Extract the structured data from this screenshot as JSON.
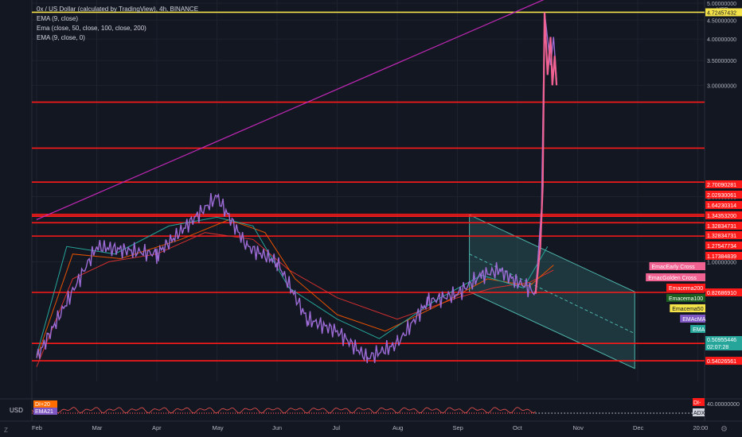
{
  "legend": {
    "title": "0x / US Dollar (calculated by TradingView), 4h, BINANCE",
    "ema1": "EMA (9, close)",
    "ema2": "Ema (close, 50, close, 100, close, 200)",
    "ema3": "EMA (9, close, 0)"
  },
  "axis_currency": "USD",
  "scale_mode_label": "Z",
  "colors": {
    "background": "#131722",
    "price_line": "#9c6bd6",
    "spike": "#f06292",
    "support_line": "#ff1a1a",
    "high_line": "#f5e34a",
    "trend_line": "#c228b8",
    "channel": "#4db6ac"
  },
  "chart_data": {
    "type": "line",
    "title": "0x / US Dollar (calculated by TradingView), 4h, BINANCE",
    "scale": "log",
    "x_ticks": [
      "Feb",
      "Mar",
      "Apr",
      "May",
      "Jun",
      "Jul",
      "Aug",
      "Sep",
      "Oct",
      "Nov",
      "Dec",
      "20:00"
    ],
    "y_ticks": [
      "5.00000000",
      "4.50000000",
      "4.00000000",
      "3.50000000",
      "3.00000000",
      "1.50000000",
      "1.00000000"
    ],
    "ylim": [
      0.48,
      5.0
    ],
    "price_series": {
      "t": [
        0,
        1,
        2,
        3,
        3.5,
        4,
        4.5,
        5,
        5.5,
        6,
        6.5,
        7,
        7.4,
        7.7,
        8,
        8.15,
        8.3,
        8.4,
        8.45,
        8.55,
        8.6,
        8.65
      ],
      "v": [
        0.55,
        1.1,
        1.05,
        1.5,
        1.1,
        1.0,
        0.7,
        0.65,
        0.55,
        0.6,
        0.78,
        0.82,
        0.92,
        0.95,
        0.88,
        0.86,
        0.82,
        1.4,
        4.72,
        3.4,
        4.05,
        3.1
      ]
    },
    "horizontal_lines": [
      {
        "value": 4.72457432,
        "label": "4.72457432",
        "color": "#f5e34a"
      },
      {
        "value": 2.70090281,
        "label": "2.70090281",
        "color": "#ff1a1a"
      },
      {
        "value": 2.02930061,
        "label": "2.02930061",
        "color": "#ff1a1a"
      },
      {
        "value": 1.64230314,
        "label": "1.64230314",
        "color": "#ff1a1a"
      },
      {
        "value": 1.343532,
        "label": "1.34353200",
        "color": "#ff1a1a"
      },
      {
        "value": 1.32834731,
        "label": "1.32834731",
        "color": "#ff1a1a"
      },
      {
        "value": 1.32834731,
        "label": "1.32834731",
        "color": "#ff1a1a"
      },
      {
        "value": 1.27547734,
        "label": "1.27547734",
        "color": "#ff1a1a"
      },
      {
        "value": 1.17384839,
        "label": "1.17384839",
        "color": "#ff1a1a"
      },
      {
        "value": 0.8268691,
        "label": "0.82686910",
        "color": "#ff1a1a"
      },
      {
        "value": 0.60207455,
        "label": "0.60207455",
        "color": "#ff1a1a"
      },
      {
        "value": 0.54026561,
        "label": "0.54026561",
        "color": "#ff1a1a"
      }
    ],
    "indicator_labels": [
      {
        "text": "EmaсEarly Cross",
        "color": "#f06292"
      },
      {
        "text": "EmaсGolden Cross",
        "color": "#f06292"
      },
      {
        "text": "Emaсema200",
        "color": "#ff1a1a"
      },
      {
        "text": "Emaсema100",
        "color": "#1b5e20"
      },
      {
        "text": "Emaсema50",
        "color": "#f5e34a"
      },
      {
        "text": "EMAсMA",
        "color": "#7e57c2"
      },
      {
        "text": "EMA",
        "color": "#26a69a"
      }
    ],
    "current_price": {
      "value": "0.50955446",
      "countdown": "02:07:28"
    },
    "lower_pane": {
      "value": "40.00000000",
      "labels": [
        "DI-",
        "ADX"
      ],
      "left_labels": [
        "DI+20",
        "EMA21"
      ]
    }
  }
}
